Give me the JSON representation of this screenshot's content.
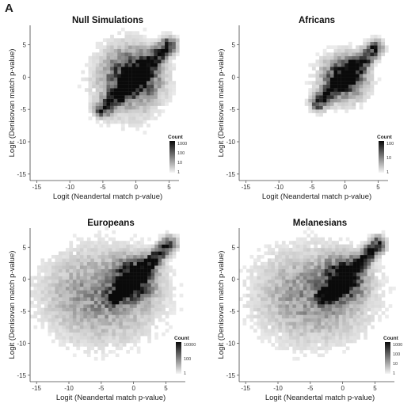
{
  "figure": {
    "panel_letter": "A"
  },
  "chart_data": [
    {
      "type": "heatmap",
      "title": "Null Simulations",
      "xlabel": "Logit (Neandertal match p-value)",
      "ylabel": "Logit (Denisovan match p-value)",
      "xlim": [
        -16,
        6.5
      ],
      "ylim": [
        -16,
        8
      ],
      "xticks": [
        -15,
        -10,
        -5,
        0,
        5
      ],
      "yticks": [
        -15,
        -10,
        -5,
        0,
        5
      ],
      "legend": {
        "title": "Count",
        "labels": [
          "1000",
          "100",
          "10",
          "1"
        ],
        "position": "bottom-right"
      },
      "density": {
        "diag_from": -5,
        "diag_to": 5,
        "core_center": [
          -0.3,
          0.2
        ],
        "core_spread": 2.4,
        "background_center": [
          -1.5,
          -1.0
        ],
        "background_spread": [
          3.5,
          4.0
        ],
        "background_weight": 0.6,
        "max_count_log10": 3.3
      }
    },
    {
      "type": "heatmap",
      "title": "Africans",
      "xlabel": "Logit (Neandertal match p-value)",
      "ylabel": "Logit (Denisovan match p-value)",
      "xlim": [
        -16,
        6.5
      ],
      "ylim": [
        -16,
        8
      ],
      "xticks": [
        -15,
        -10,
        -5,
        0,
        5
      ],
      "yticks": [
        -15,
        -10,
        -5,
        0,
        5
      ],
      "legend": {
        "title": "Count",
        "labels": [
          "100",
          "10",
          "1"
        ],
        "position": "bottom-right"
      },
      "density": {
        "diag_from": -4,
        "diag_to": 4.5,
        "core_center": [
          0.0,
          0.0
        ],
        "core_spread": 1.9,
        "background_center": [
          -0.5,
          -0.5
        ],
        "background_spread": [
          2.8,
          2.8
        ],
        "background_weight": 0.35,
        "max_count_log10": 2.3
      }
    },
    {
      "type": "heatmap",
      "title": "Europeans",
      "xlabel": "Logit (Neandertal match p-value)",
      "ylabel": "Logit (Denisovan match p-value)",
      "xlim": [
        -16,
        8
      ],
      "ylim": [
        -16,
        8
      ],
      "xticks": [
        -15,
        -10,
        -5,
        0,
        5
      ],
      "yticks": [
        -15,
        -10,
        -5,
        0,
        5
      ],
      "legend": {
        "title": "Count",
        "labels": [
          "10000",
          "100",
          "1"
        ],
        "position": "bottom-right"
      },
      "density": {
        "diag_from": -3,
        "diag_to": 5.5,
        "core_center": [
          0.0,
          0.0
        ],
        "core_spread": 2.0,
        "background_center": [
          -5.0,
          -2.5
        ],
        "background_spread": [
          5.5,
          4.5
        ],
        "background_weight": 1.0,
        "max_count_log10": 4.0
      }
    },
    {
      "type": "heatmap",
      "title": "Melanesians",
      "xlabel": "Logit (Neandertal match p-value)",
      "ylabel": "Logit (Denisovan match p-value)",
      "xlim": [
        -16,
        8
      ],
      "ylim": [
        -16,
        8
      ],
      "xticks": [
        -15,
        -10,
        -5,
        0,
        5
      ],
      "yticks": [
        -15,
        -10,
        -5,
        0,
        5
      ],
      "legend": {
        "title": "Count",
        "labels": [
          "1000",
          "100",
          "10",
          "1"
        ],
        "position": "bottom-right"
      },
      "density": {
        "diag_from": -3,
        "diag_to": 5.5,
        "core_center": [
          0.0,
          0.0
        ],
        "core_spread": 2.0,
        "background_center": [
          -4.5,
          -2.5
        ],
        "background_spread": [
          5.5,
          4.5
        ],
        "background_weight": 1.0,
        "max_count_log10": 3.3
      }
    }
  ]
}
